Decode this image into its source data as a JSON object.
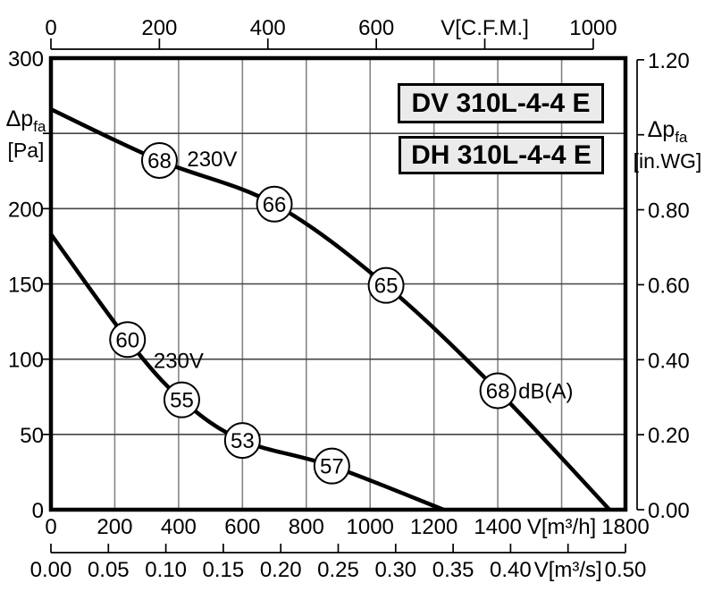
{
  "chart_data": {
    "type": "line",
    "model_labels": [
      "DV 310L-4-4 E",
      "DH 310L-4-4 E"
    ],
    "axes": {
      "top_cfm": {
        "ticks": [
          {
            "v": 0,
            "t": "0"
          },
          {
            "v": 200,
            "t": "200"
          },
          {
            "v": 400,
            "t": "400"
          },
          {
            "v": 600,
            "t": "600"
          },
          {
            "v": 800,
            "t": "V[C.F.M.]"
          },
          {
            "v": 1000,
            "t": "1000"
          }
        ]
      },
      "bottom_m3h": {
        "min": 0,
        "max": 1800,
        "ticks": [
          {
            "v": 0,
            "t": "0"
          },
          {
            "v": 200,
            "t": "200"
          },
          {
            "v": 400,
            "t": "400"
          },
          {
            "v": 600,
            "t": "600"
          },
          {
            "v": 800,
            "t": "800"
          },
          {
            "v": 1000,
            "t": "1000"
          },
          {
            "v": 1200,
            "t": "1200"
          },
          {
            "v": 1400,
            "t": "1400"
          },
          {
            "v": 1600,
            "t": "V[m³/h]"
          },
          {
            "v": 1800,
            "t": "1800"
          }
        ]
      },
      "bottom_m3s": {
        "ticks": [
          {
            "v": 0.0,
            "t": "0.00"
          },
          {
            "v": 0.05,
            "t": "0.05"
          },
          {
            "v": 0.1,
            "t": "0.10"
          },
          {
            "v": 0.15,
            "t": "0.15"
          },
          {
            "v": 0.2,
            "t": "0.20"
          },
          {
            "v": 0.25,
            "t": "0.25"
          },
          {
            "v": 0.3,
            "t": "0.30"
          },
          {
            "v": 0.35,
            "t": "0.35"
          },
          {
            "v": 0.4,
            "t": "0.40"
          },
          {
            "v": 0.45,
            "t": "V[m³/s]"
          },
          {
            "v": 0.5,
            "t": "0.50"
          }
        ]
      },
      "left_pa": {
        "name": "Δp",
        "sub": "fa",
        "unit": "[Pa]",
        "min": 0,
        "max": 300,
        "ticks": [
          {
            "v": 300,
            "t": "300"
          },
          {
            "v": 250,
            "t": ""
          },
          {
            "v": 200,
            "t": "200"
          },
          {
            "v": 150,
            "t": "150"
          },
          {
            "v": 100,
            "t": "100"
          },
          {
            "v": 50,
            "t": "50"
          },
          {
            "v": 0,
            "t": "0"
          }
        ]
      },
      "right_inwg": {
        "name": "Δp",
        "sub": "fa",
        "unit": "[in.WG]",
        "ticks": [
          {
            "v": 1.2,
            "t": "1.20"
          },
          {
            "v": 1.0,
            "t": ""
          },
          {
            "v": 0.8,
            "t": "0.80"
          },
          {
            "v": 0.6,
            "t": "0.60"
          },
          {
            "v": 0.4,
            "t": "0.40"
          },
          {
            "v": 0.2,
            "t": "0.20"
          },
          {
            "v": 0.0,
            "t": "0.00"
          }
        ]
      }
    },
    "series": [
      {
        "name": "curve-upper-230V",
        "voltage_label": "230V",
        "voltage_label_at": [
          505,
          233
        ],
        "points_m3h_pa": [
          [
            0,
            266
          ],
          [
            340,
            232
          ],
          [
            700,
            203
          ],
          [
            1050,
            149
          ],
          [
            1400,
            79
          ],
          [
            1750,
            0
          ]
        ],
        "noise_markers": [
          {
            "flow": 340,
            "pressure": 232,
            "db": "68"
          },
          {
            "flow": 700,
            "pressure": 203,
            "db": "66"
          },
          {
            "flow": 1050,
            "pressure": 149,
            "db": "65"
          },
          {
            "flow": 1400,
            "pressure": 79,
            "db": "68",
            "suffix": "dB(A)"
          }
        ]
      },
      {
        "name": "curve-lower-230V",
        "voltage_label": "230V",
        "voltage_label_at": [
          400,
          99
        ],
        "points_m3h_pa": [
          [
            0,
            183
          ],
          [
            240,
            113
          ],
          [
            410,
            73
          ],
          [
            600,
            46
          ],
          [
            880,
            29
          ],
          [
            1230,
            0
          ]
        ],
        "noise_markers": [
          {
            "flow": 240,
            "pressure": 113,
            "db": "60"
          },
          {
            "flow": 410,
            "pressure": 73,
            "db": "55"
          },
          {
            "flow": 600,
            "pressure": 46,
            "db": "53"
          },
          {
            "flow": 880,
            "pressure": 29,
            "db": "57"
          }
        ]
      }
    ],
    "colors": {
      "curve": "#000000",
      "grid_vertical": "#858585",
      "grid_horizontal": "#444444",
      "axis": "#000000",
      "box_bg": "#ebebeb",
      "marker_fill": "#ffffff"
    }
  }
}
